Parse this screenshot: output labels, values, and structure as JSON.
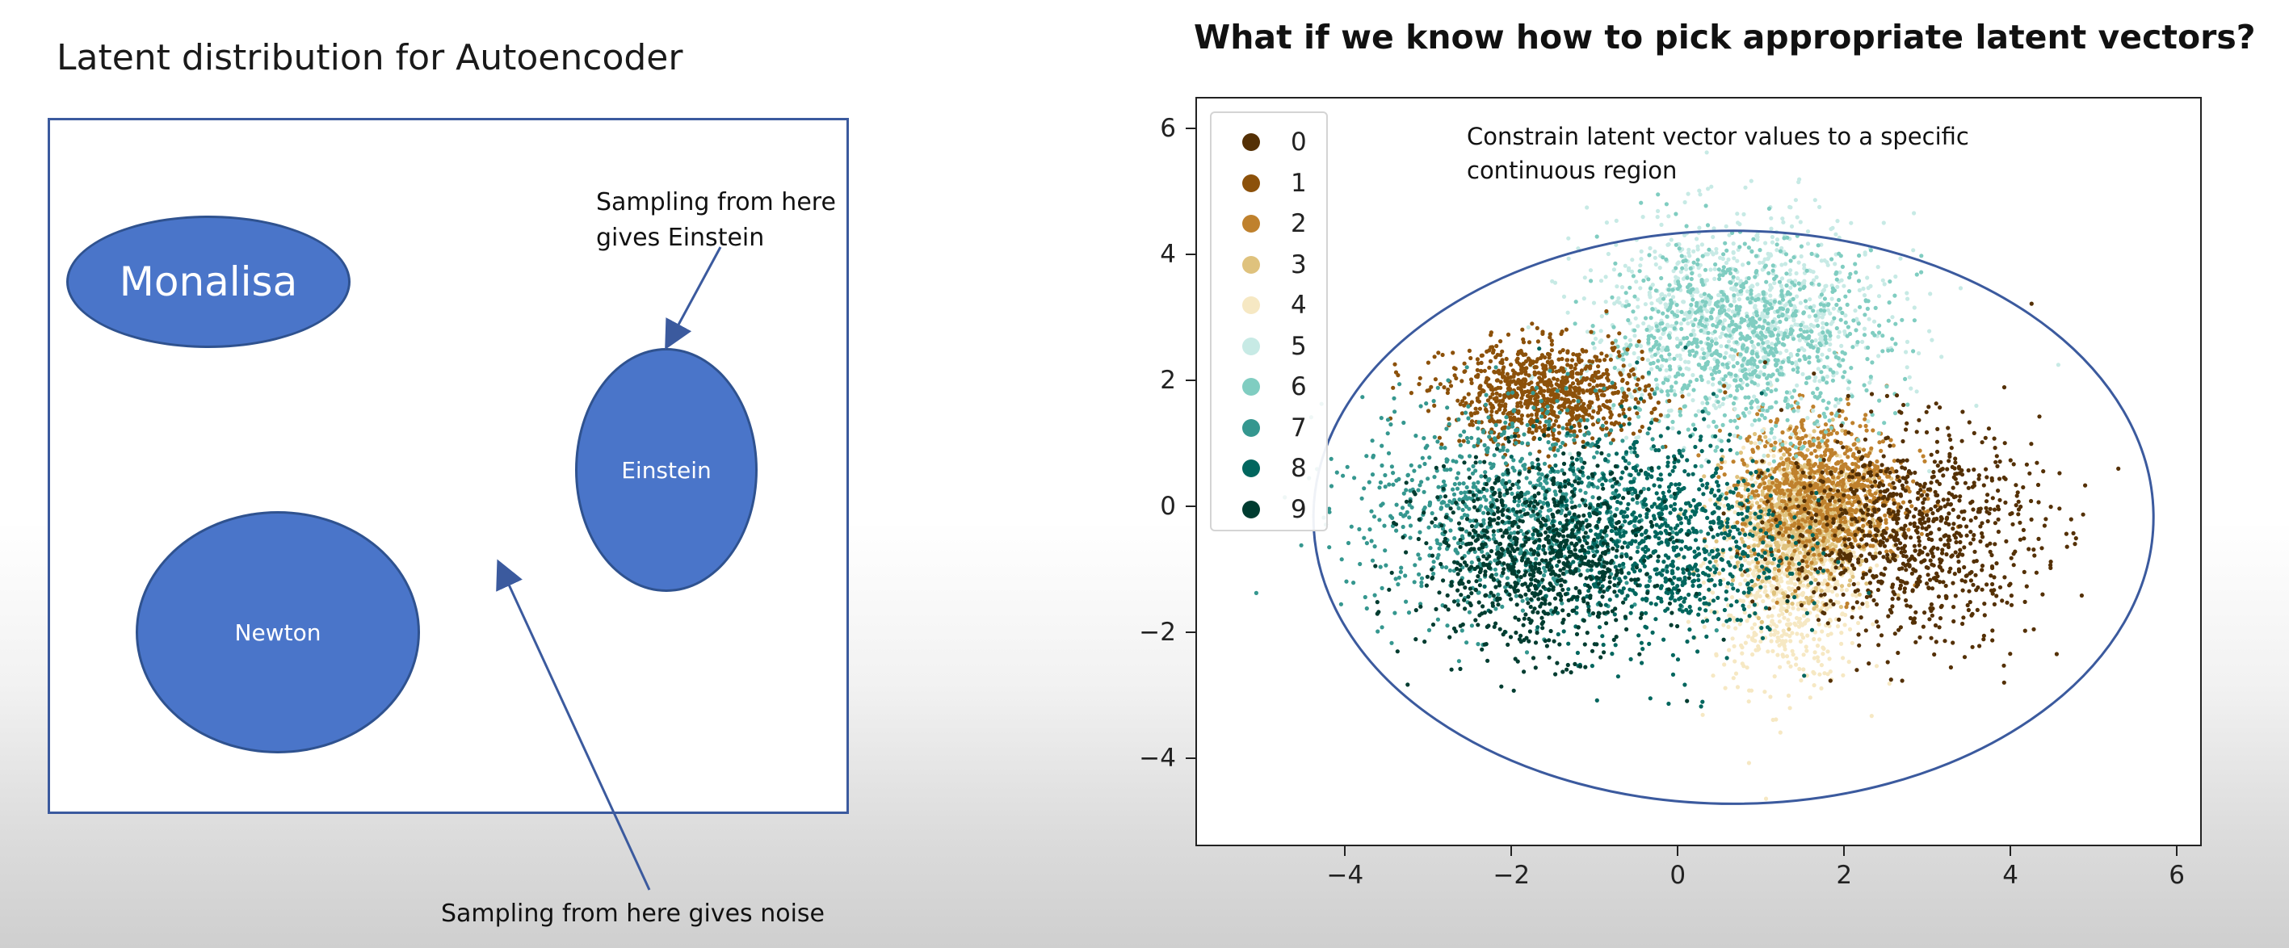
{
  "left_panel": {
    "title": "Latent distribution for Autoencoder",
    "regions": [
      {
        "label": "Monalisa"
      },
      {
        "label": "Einstein"
      },
      {
        "label": "Newton"
      }
    ],
    "note_einstein_line1": "Sampling from here",
    "note_einstein_line2": "gives Einstein",
    "note_noise": "Sampling from here gives noise",
    "colors": {
      "region_fill": "#4a75c9",
      "region_border": "#2f528f",
      "box_border": "#3b5a9e"
    }
  },
  "right_panel": {
    "title": "What if we know how to pick appropriate latent vectors?",
    "annotation_line1": "Constrain latent vector values to a specific",
    "annotation_line2": "continuous region"
  },
  "chart_data": {
    "type": "scatter",
    "xlabel": "",
    "ylabel": "",
    "xlim": [
      -5.8,
      6.3
    ],
    "ylim": [
      -5.4,
      6.5
    ],
    "xticks": [
      "−4",
      "−2",
      "0",
      "2",
      "4",
      "6"
    ],
    "yticks": [
      "6",
      "4",
      "2",
      "0",
      "−2",
      "−4"
    ],
    "legend_position": "top-left",
    "grid": false,
    "series": [
      {
        "name": "0",
        "color": "#543005",
        "center": [
          2.8,
          -0.4
        ],
        "spread": [
          0.75,
          0.85
        ]
      },
      {
        "name": "1",
        "color": "#8c510a",
        "center": [
          -1.6,
          1.8
        ],
        "spread": [
          0.6,
          0.4
        ]
      },
      {
        "name": "2",
        "color": "#bf812d",
        "center": [
          1.7,
          0.3
        ],
        "spread": [
          0.5,
          0.6
        ]
      },
      {
        "name": "3",
        "color": "#dfc27d",
        "center": [
          1.5,
          -0.2
        ],
        "spread": [
          0.4,
          0.55
        ]
      },
      {
        "name": "4",
        "color": "#f6e8c3",
        "center": [
          1.3,
          -1.0
        ],
        "spread": [
          0.45,
          0.9
        ]
      },
      {
        "name": "5",
        "color": "#c7eae5",
        "center": [
          0.7,
          3.0
        ],
        "spread": [
          0.9,
          0.8
        ]
      },
      {
        "name": "6",
        "color": "#80cdc1",
        "center": [
          0.8,
          2.7
        ],
        "spread": [
          0.85,
          0.75
        ]
      },
      {
        "name": "7",
        "color": "#35978f",
        "center": [
          -2.1,
          0.0
        ],
        "spread": [
          0.9,
          0.9
        ]
      },
      {
        "name": "8",
        "color": "#01665e",
        "center": [
          -0.2,
          -0.5
        ],
        "spread": [
          0.75,
          0.85
        ]
      },
      {
        "name": "9",
        "color": "#003c30",
        "center": [
          -1.7,
          -0.8
        ],
        "spread": [
          0.7,
          0.75
        ]
      }
    ],
    "constraint_ellipse": {
      "center": [
        0.65,
        -0.15
      ],
      "rx": 5.05,
      "ry": 4.55,
      "color": "#3b5a9e"
    }
  }
}
